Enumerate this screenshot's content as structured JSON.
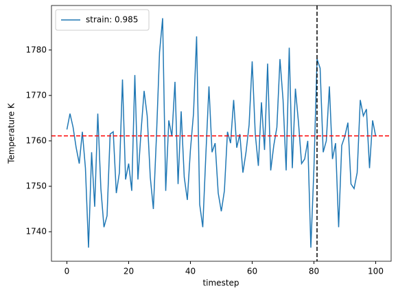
{
  "chart_data": {
    "type": "line",
    "xlabel": "timestep",
    "ylabel": "Temperature K",
    "x": [
      0,
      1,
      2,
      3,
      4,
      5,
      6,
      7,
      8,
      9,
      10,
      11,
      12,
      13,
      14,
      15,
      16,
      17,
      18,
      19,
      20,
      21,
      22,
      23,
      24,
      25,
      26,
      27,
      28,
      29,
      30,
      31,
      32,
      33,
      34,
      35,
      36,
      37,
      38,
      39,
      40,
      41,
      42,
      43,
      44,
      45,
      46,
      47,
      48,
      49,
      50,
      51,
      52,
      53,
      54,
      55,
      56,
      57,
      58,
      59,
      60,
      61,
      62,
      63,
      64,
      65,
      66,
      67,
      68,
      69,
      70,
      71,
      72,
      73,
      74,
      75,
      76,
      77,
      78,
      79,
      80,
      81,
      82,
      83,
      84,
      85,
      86,
      87,
      88,
      89,
      90,
      91,
      92,
      93,
      94,
      95,
      96,
      97,
      98,
      99,
      100
    ],
    "series": [
      {
        "name": "strain: 0.985",
        "color": "#1f77b4",
        "values": [
          1762.5,
          1766,
          1763,
          1758.5,
          1755,
          1762,
          1754,
          1736.5,
          1757.5,
          1745.5,
          1766,
          1749.5,
          1741,
          1743.5,
          1761.5,
          1762,
          1748.5,
          1753,
          1773.5,
          1751.5,
          1755,
          1749,
          1774.5,
          1751.5,
          1762,
          1771,
          1765.5,
          1752,
          1745,
          1761,
          1779.5,
          1787,
          1749,
          1764.5,
          1761,
          1773,
          1750.5,
          1766.5,
          1752,
          1747,
          1758,
          1766,
          1783,
          1746,
          1741,
          1757,
          1772,
          1757.5,
          1759.5,
          1748.5,
          1744.5,
          1749,
          1762,
          1759.5,
          1769,
          1758.5,
          1761.5,
          1753,
          1757.5,
          1763.5,
          1777.5,
          1761.5,
          1754.5,
          1768.5,
          1758,
          1777,
          1753.5,
          1759,
          1763,
          1778,
          1769,
          1753.5,
          1780.5,
          1754,
          1771.5,
          1764,
          1755,
          1756,
          1760,
          1736.5,
          1754,
          1778,
          1776,
          1757.5,
          1760,
          1772,
          1756,
          1759.5,
          1741,
          1759,
          1761,
          1764,
          1750.5,
          1749.5,
          1753,
          1769,
          1765.5,
          1767,
          1754,
          1764.5,
          1761
        ]
      }
    ],
    "hline": {
      "value": 1761.1,
      "color": "red"
    },
    "vline": {
      "value": 81,
      "color": "black"
    },
    "xlim": [
      -5,
      105
    ],
    "xticks": [
      0,
      20,
      40,
      60,
      80,
      100
    ],
    "ylim": [
      1733.5,
      1789.8
    ],
    "yticks": [
      1740,
      1750,
      1760,
      1770,
      1780
    ],
    "grid": false,
    "legend": "upper left"
  }
}
